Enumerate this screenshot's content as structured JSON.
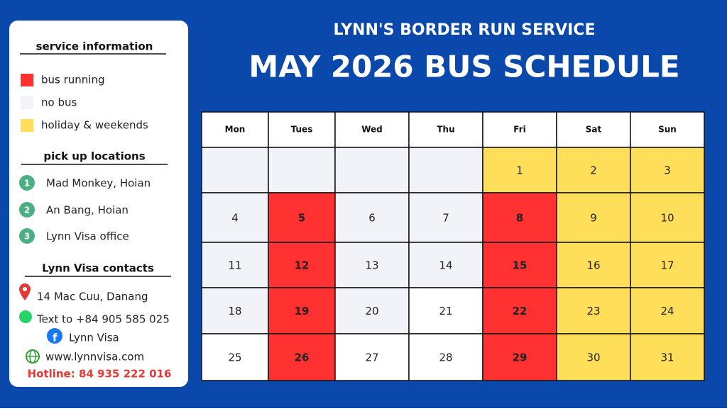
{
  "header": {
    "subtitle": "LYNN'S BORDER RUN SERVICE",
    "title": "MAY 2026 BUS SCHEDULE"
  },
  "sidebar": {
    "legend_title": "service information",
    "legend": [
      {
        "label": "bus running",
        "color": "#ff3131"
      },
      {
        "label": "no bus",
        "color": "#f2f3f9"
      },
      {
        "label": "holiday & weekends",
        "color": "#ffde59"
      }
    ],
    "pickup_title": "pick up locations",
    "pickups": [
      {
        "number": "1",
        "label": "Mad Monkey, Hoian"
      },
      {
        "number": "2",
        "label": "An Bang, Hoian"
      },
      {
        "number": "3",
        "label": "Lynn Visa office"
      }
    ],
    "contacts_title": "Lynn Visa contacts",
    "contacts": [
      "14 Mac Cuu, Danang",
      "Text to +84 905 585 025",
      "Lynn Visa",
      "www.lynnvisa.com"
    ],
    "hotline": "Hotline: 84 935 222 016"
  },
  "calendar": {
    "days": [
      "Mon",
      "Tues",
      "Wed",
      "Thu",
      "Fri",
      "Sat",
      "Sun"
    ],
    "weeks": [
      [
        {
          "color": "#f2f3f9"
        },
        {
          "color": "#f2f3f9"
        },
        {
          "color": "#f2f3f9"
        },
        {
          "color": "#f2f3f9"
        },
        {
          "day": 1,
          "color": "#ffde59"
        },
        {
          "day": 2,
          "color": "#ffde59"
        },
        {
          "day": 3,
          "color": "#ffde59"
        }
      ],
      [
        {
          "day": 4,
          "color": "#f2f3f9"
        },
        {
          "day": 5,
          "color": "#ff3131"
        },
        {
          "day": 6,
          "color": "#f2f3f9"
        },
        {
          "day": 7,
          "color": "#f2f3f9"
        },
        {
          "day": 8,
          "color": "#ff3131"
        },
        {
          "day": 9,
          "color": "#ffde59"
        },
        {
          "day": 10,
          "color": "#ffde59"
        }
      ],
      [
        {
          "day": 11,
          "color": "#f2f3f9"
        },
        {
          "day": 12,
          "color": "#ff3131"
        },
        {
          "day": 13,
          "color": "#f2f3f9"
        },
        {
          "day": 14,
          "color": "#f2f3f9"
        },
        {
          "day": 15,
          "color": "#ff3131"
        },
        {
          "day": 16,
          "color": "#ffde59"
        },
        {
          "day": 17,
          "color": "#ffde59"
        }
      ],
      [
        {
          "day": 18,
          "color": "#f2f3f9"
        },
        {
          "day": 19,
          "color": "#ff3131"
        },
        {
          "day": 20,
          "color": "#f2f3f9"
        },
        {
          "day": 21,
          "color": "#ffffff"
        },
        {
          "day": 22,
          "color": "#ff3131"
        },
        {
          "day": 23,
          "color": "#ffde59"
        },
        {
          "day": 24,
          "color": "#ffde59"
        }
      ],
      [
        {
          "day": 25,
          "color": "#ffffff"
        },
        {
          "day": 26,
          "color": "#ff3131"
        },
        {
          "day": 27,
          "color": "#ffffff"
        },
        {
          "day": 28,
          "color": "#ffffff"
        },
        {
          "day": 29,
          "color": "#ff3131"
        },
        {
          "day": 30,
          "color": "#ffde59"
        },
        {
          "day": 31,
          "color": "#ffde59"
        }
      ]
    ]
  }
}
